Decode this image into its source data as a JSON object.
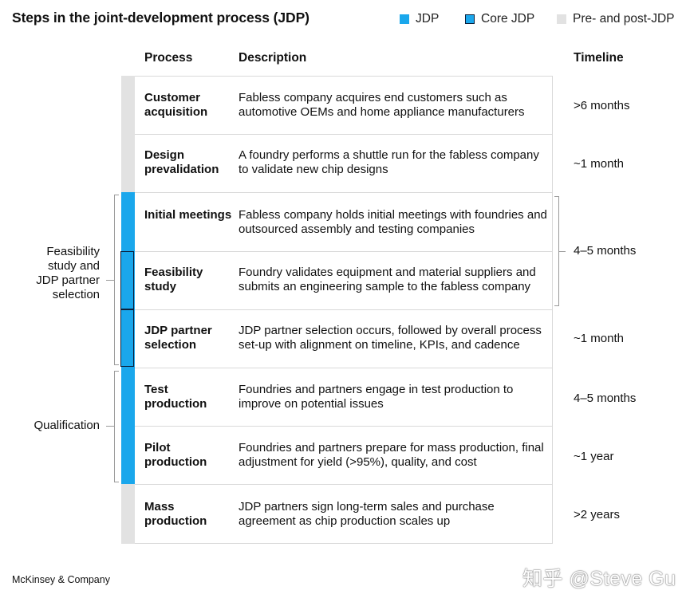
{
  "title": "Steps in the joint-development process (JDP)",
  "legend": [
    {
      "label": "JDP",
      "color": "#1aa7ec"
    },
    {
      "label": "Core JDP",
      "color": "#1aa7ec",
      "border": "#0b1f3a"
    },
    {
      "label": "Pre- and post-JDP",
      "color": "#e2e2e2"
    }
  ],
  "headers": {
    "process": "Process",
    "description": "Description",
    "timeline": "Timeline"
  },
  "steps": [
    {
      "process": "Customer acquisition",
      "description": "Fabless company acquires end customers such as automotive OEMs and home appliance manufacturers",
      "type": "pre"
    },
    {
      "process": "Design prevalidation",
      "description": "A foundry performs a shuttle run for the fabless company to validate new chip designs",
      "type": "pre"
    },
    {
      "process": "Initial meetings",
      "description": "Fabless company holds initial meetings with foundries and outsourced assembly and testing companies",
      "type": "jdp"
    },
    {
      "process": "Feasibility study",
      "description": "Foundry validates equipment and material suppliers and submits an engineering sample to the fabless company",
      "type": "core"
    },
    {
      "process": "JDP partner selection",
      "description": "JDP partner selection occurs, followed by overall process set-up with alignment on timeline, KPIs, and cadence",
      "type": "core"
    },
    {
      "process": "Test production",
      "description": "Foundries and partners engage in test production to improve on potential issues",
      "type": "jdp"
    },
    {
      "process": "Pilot production",
      "description": "Foundries and partners prepare for mass production, final adjustment for yield (>95%), quality, and cost",
      "type": "jdp"
    },
    {
      "process": "Mass production",
      "description": "JDP partners sign long-term sales and purchase agreement as chip production scales up",
      "type": "pre"
    }
  ],
  "timelines": [
    ">6 months",
    "~1 month",
    "4–5 months",
    "~1 month",
    "4–5 months",
    "~1 year",
    ">2 years"
  ],
  "groups": {
    "feasibility": "Feasibility study and JDP partner selection",
    "qualification": "Qualification"
  },
  "footer": "McKinsey & Company",
  "watermark": "知乎 @Steve Gu"
}
